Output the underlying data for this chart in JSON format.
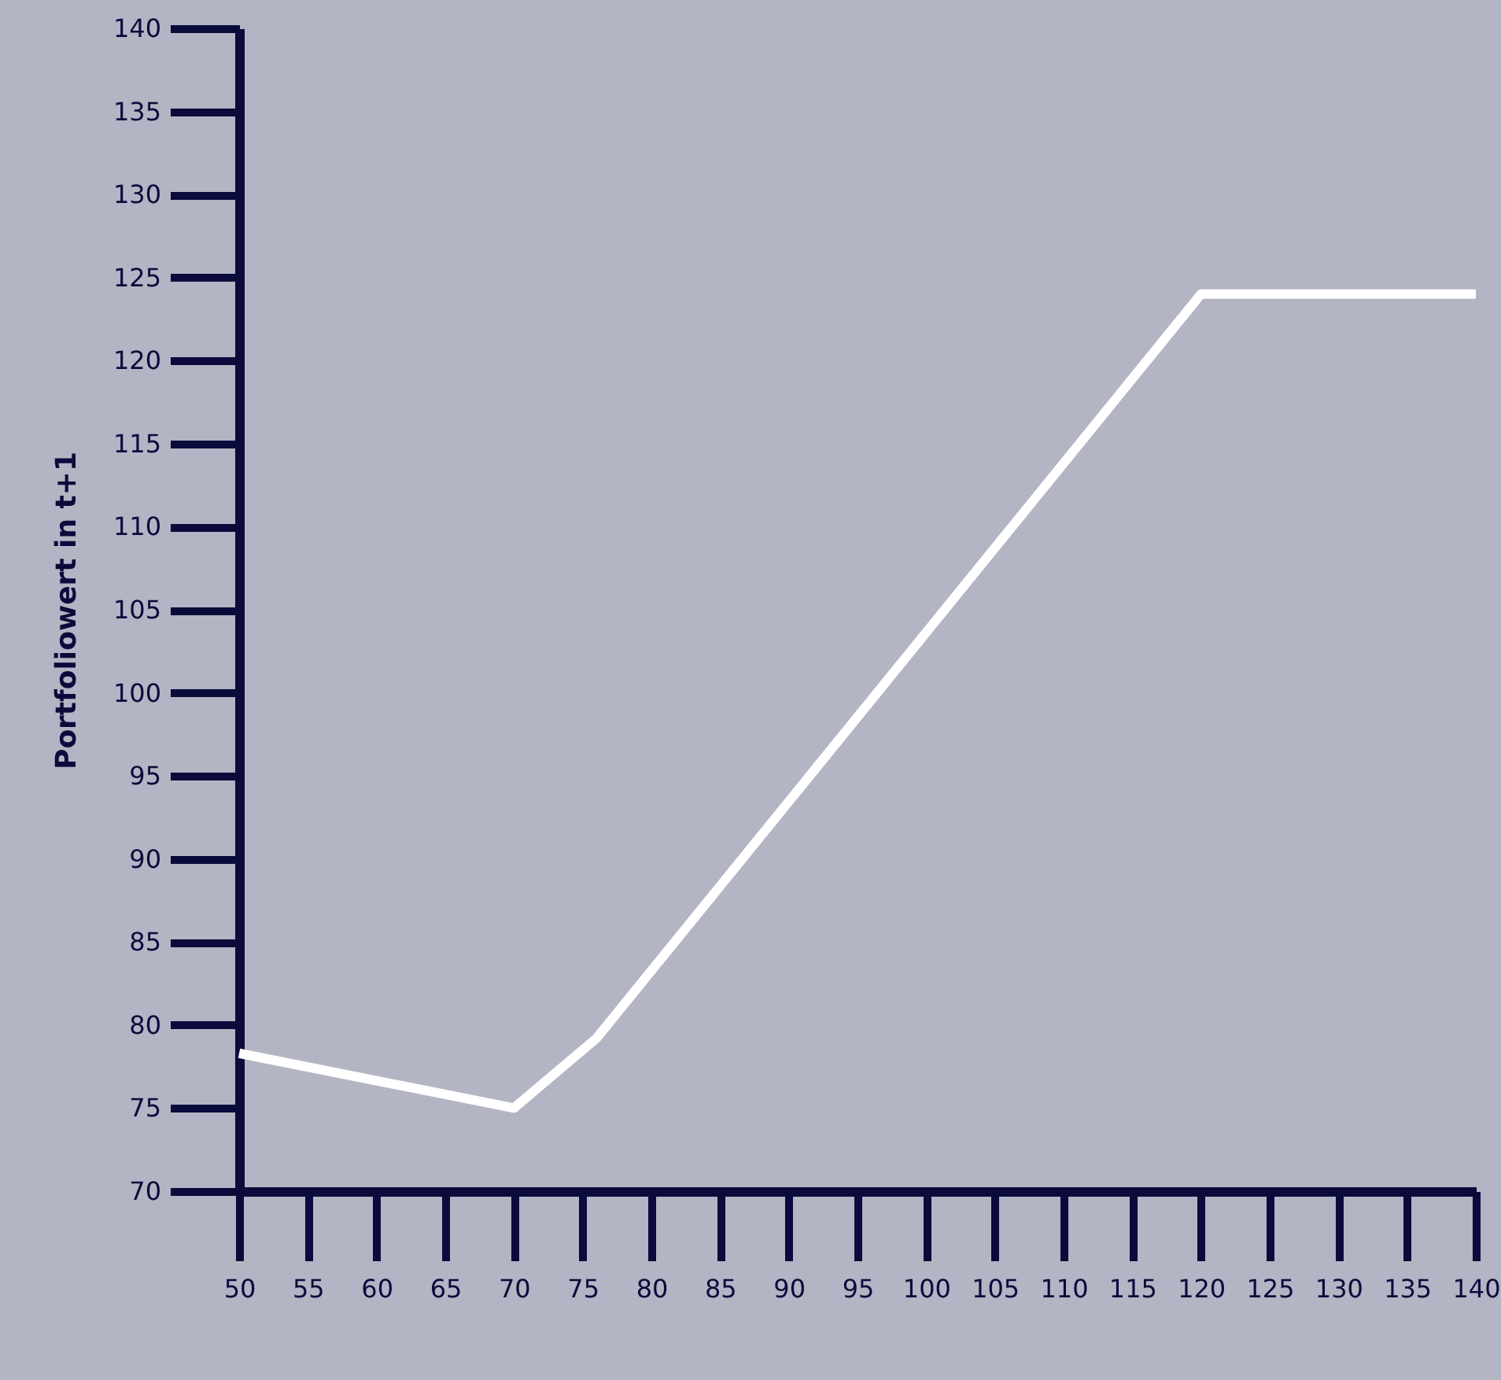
{
  "chart_data": {
    "type": "line",
    "ylabel": "Portfoliowert in t+1",
    "x": [
      50,
      70,
      76,
      120,
      140
    ],
    "series": [
      {
        "color": "#ffffff",
        "values": [
          78.3,
          75,
          79.2,
          124,
          124
        ]
      }
    ],
    "xlim": [
      50,
      140
    ],
    "xticks": [
      50,
      55,
      60,
      65,
      70,
      75,
      80,
      85,
      90,
      95,
      100,
      105,
      110,
      115,
      120,
      125,
      130,
      135,
      140
    ],
    "ylim": [
      70,
      140
    ],
    "yticks": [
      70,
      75,
      80,
      85,
      90,
      95,
      100,
      105,
      110,
      115,
      120,
      125,
      130,
      135,
      140
    ],
    "grid": false,
    "marker": "none",
    "line_style": "solid"
  }
}
